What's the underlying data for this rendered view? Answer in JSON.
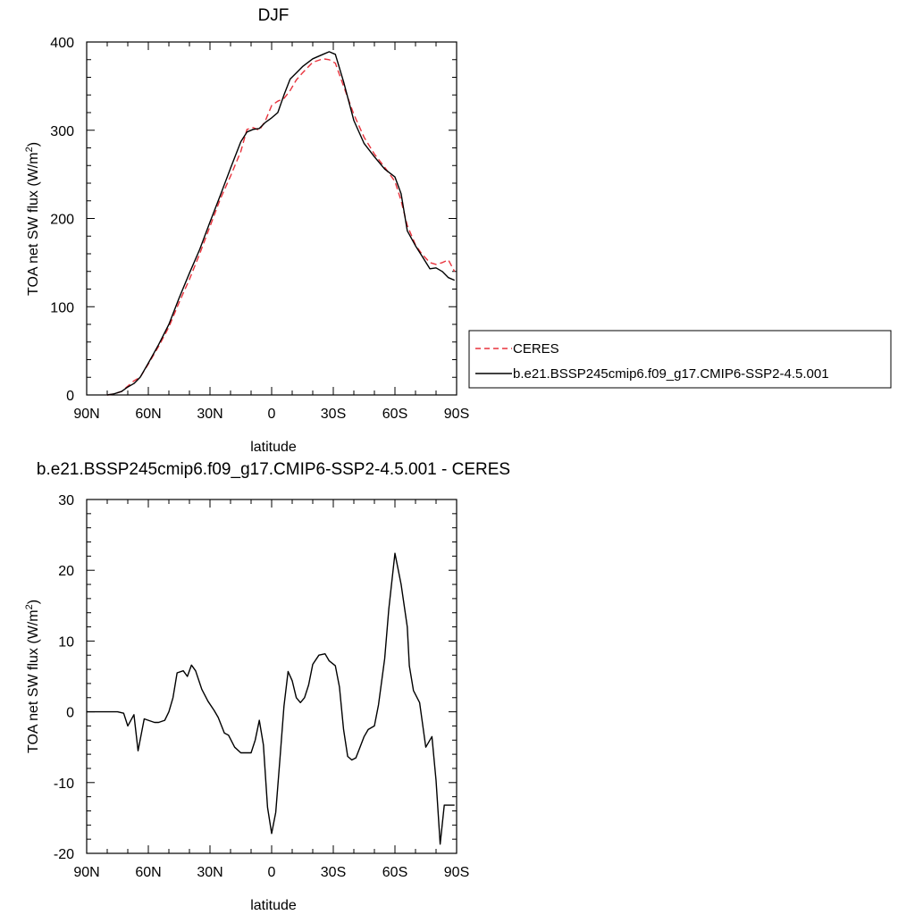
{
  "chart_data": [
    {
      "type": "line",
      "title": "DJF",
      "xlabel": "latitude",
      "ylabel_main": "TOA net SW flux (W/m",
      "ylabel_sup": "2",
      "ylabel_close": ")",
      "xlim": [
        90,
        -90
      ],
      "ylim": [
        0,
        400
      ],
      "x_tick_values": [
        90,
        60,
        30,
        0,
        -30,
        -60,
        -90
      ],
      "x_tick_labels": [
        "90N",
        "60N",
        "30N",
        "0",
        "30S",
        "60S",
        "90S"
      ],
      "y_tick_values": [
        0,
        100,
        200,
        300,
        400
      ],
      "y_tick_labels": [
        "0",
        "100",
        "200",
        "300",
        "400"
      ],
      "legend": {
        "placement": "right",
        "entries": [
          "CERES",
          "b.e21.BSSP245cmip6.f09_g17.CMIP6-SSP2-4.5.001"
        ]
      },
      "series": [
        {
          "name": "CERES",
          "color": "#e8323c",
          "dash": true,
          "x": [
            80,
            77,
            73,
            70,
            67,
            64,
            60,
            55,
            50,
            45,
            40,
            35,
            30,
            25,
            20,
            15,
            12,
            9,
            6,
            3,
            0,
            -3,
            -6,
            -9,
            -12,
            -15,
            -20,
            -25,
            -28,
            -31,
            -35,
            -40,
            -45,
            -50,
            -55,
            -60,
            -63,
            -66,
            -70,
            -73,
            -77,
            -80,
            -83,
            -86,
            -89
          ],
          "y": [
            0,
            1,
            4,
            10,
            16,
            20,
            35,
            55,
            77,
            105,
            131,
            160,
            191,
            222,
            248,
            276,
            301,
            303,
            300,
            311,
            328,
            333,
            336,
            345,
            357,
            365,
            377,
            381,
            380,
            376,
            350,
            318,
            292,
            273,
            258,
            242,
            220,
            192,
            170,
            160,
            150,
            148,
            150,
            153,
            140
          ]
        },
        {
          "name": "b.e21.BSSP245cmip6.f09_g17.CMIP6-SSP2-4.5.001",
          "color": "#000000",
          "dash": false,
          "x": [
            80,
            77,
            73,
            70,
            67,
            64,
            60,
            55,
            50,
            45,
            40,
            35,
            30,
            25,
            20,
            15,
            12,
            9,
            6,
            3,
            0,
            -3,
            -6,
            -9,
            -12,
            -15,
            -20,
            -25,
            -28,
            -31,
            -35,
            -40,
            -45,
            -50,
            -55,
            -60,
            -63,
            -66,
            -70,
            -73,
            -77,
            -80,
            -83,
            -86,
            -89
          ],
          "y": [
            0,
            1,
            4,
            9,
            13,
            20,
            36,
            57,
            80,
            110,
            138,
            165,
            196,
            226,
            257,
            287,
            298,
            301,
            302,
            309,
            314,
            320,
            340,
            358,
            365,
            372,
            381,
            386,
            389,
            386,
            355,
            311,
            285,
            270,
            256,
            247,
            228,
            186,
            169,
            158,
            143,
            144,
            140,
            133,
            130
          ]
        }
      ]
    },
    {
      "type": "line",
      "title": "b.e21.BSSP245cmip6.f09_g17.CMIP6-SSP2-4.5.001 - CERES",
      "xlabel": "latitude",
      "ylabel_main": "TOA net SW flux (W/m",
      "ylabel_sup": "2",
      "ylabel_close": ")",
      "xlim": [
        90,
        -90
      ],
      "ylim": [
        -20,
        30
      ],
      "x_tick_values": [
        90,
        60,
        30,
        0,
        -30,
        -60,
        -90
      ],
      "x_tick_labels": [
        "90N",
        "60N",
        "30N",
        "0",
        "30S",
        "60S",
        "90S"
      ],
      "y_tick_values": [
        -20,
        -10,
        0,
        10,
        20,
        30
      ],
      "y_tick_labels": [
        "-20",
        "-10",
        "0",
        "10",
        "20",
        "30"
      ],
      "series": [
        {
          "color": "#000000",
          "dash": false,
          "x": [
            90,
            86,
            82,
            78,
            75,
            72,
            70,
            67,
            65,
            62,
            60,
            57,
            55,
            52,
            50,
            48,
            46,
            43,
            41,
            39,
            37,
            34,
            31,
            28,
            26,
            23,
            21,
            18,
            15,
            12,
            10,
            8,
            6,
            4,
            2,
            0,
            -2,
            -4,
            -6,
            -8,
            -10,
            -12,
            -14,
            -16,
            -18,
            -20,
            -23,
            -26,
            -28,
            -31,
            -33,
            -35,
            -37,
            -39,
            -41,
            -43,
            -45,
            -47,
            -50,
            -52,
            -55,
            -57,
            -60,
            -63,
            -66,
            -67,
            -69,
            -72,
            -75,
            -78,
            -80,
            -82,
            -84,
            -86,
            -88,
            -89
          ],
          "y": [
            0,
            0,
            0,
            0,
            0,
            -0.2,
            -2,
            -0.4,
            -5.5,
            -1,
            -1.2,
            -1.5,
            -1.5,
            -1.2,
            0,
            2,
            5.5,
            5.8,
            5,
            6.6,
            5.8,
            3.2,
            1.5,
            0.2,
            -0.8,
            -3,
            -3.3,
            -5,
            -5.8,
            -5.8,
            -5.8,
            -4,
            -1.2,
            -4.7,
            -13.5,
            -17.2,
            -14.2,
            -6.8,
            0.8,
            5.7,
            4.4,
            2,
            1.3,
            2,
            3.8,
            6.7,
            8,
            8.2,
            7.2,
            6.5,
            3.5,
            -2.5,
            -6.3,
            -6.8,
            -6.5,
            -5,
            -3.5,
            -2.5,
            -2,
            1,
            7.5,
            14.5,
            22.4,
            18,
            12,
            6.5,
            3,
            1.3,
            -5,
            -3.5,
            -9.7,
            -18.7,
            -13.2,
            -13.2,
            -13.2,
            -13.2
          ]
        }
      ]
    }
  ]
}
